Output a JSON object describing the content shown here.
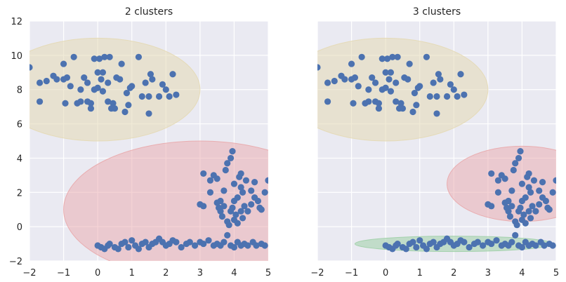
{
  "chart_data": [
    {
      "type": "scatter",
      "title": "2 clusters",
      "xlim": [
        -2,
        5
      ],
      "ylim": [
        -2,
        12
      ],
      "xticks": [
        "−2",
        "−1",
        "0",
        "1",
        "2",
        "3",
        "4",
        "5"
      ],
      "yticks": [
        "−2",
        "0",
        "2",
        "4",
        "6",
        "8",
        "10",
        "12"
      ],
      "grid": true,
      "point_color": "#4c72b0",
      "background_color": "#eaeaf2",
      "ellipses": [
        {
          "cx": 0.0,
          "cy": 8.0,
          "rx": 3.0,
          "ry": 3.0,
          "color": "#e4d9b4",
          "opacity": 0.55
        },
        {
          "cx": 3.0,
          "cy": 1.0,
          "rx": 4.0,
          "ry": 4.0,
          "color": "#e9a8ab",
          "opacity": 0.5
        }
      ]
    },
    {
      "type": "scatter",
      "title": "3 clusters",
      "xlim": [
        -2,
        5
      ],
      "ylim": [
        -2,
        12
      ],
      "xticks": [
        "−2",
        "−1",
        "0",
        "1",
        "2",
        "3",
        "4",
        "5"
      ],
      "yticks": [],
      "grid": true,
      "point_color": "#4c72b0",
      "background_color": "#eaeaf2",
      "ellipses": [
        {
          "cx": 0.0,
          "cy": 8.0,
          "rx": 3.0,
          "ry": 3.0,
          "color": "#e4d9b4",
          "opacity": 0.55
        },
        {
          "cx": 4.0,
          "cy": 2.5,
          "rx": 2.2,
          "ry": 2.2,
          "color": "#e9a8ab",
          "opacity": 0.5
        },
        {
          "cx": 2.0,
          "cy": -1.0,
          "rx": 2.9,
          "ry": 0.45,
          "color": "#9fcfa7",
          "opacity": 0.55
        }
      ]
    }
  ],
  "points": {
    "top": [
      [
        -2.0,
        9.3
      ],
      [
        -1.7,
        8.4
      ],
      [
        -1.7,
        7.3
      ],
      [
        -1.5,
        8.5
      ],
      [
        -1.3,
        8.8
      ],
      [
        -1.2,
        8.6
      ],
      [
        -1.0,
        8.6
      ],
      [
        -1.0,
        9.5
      ],
      [
        -0.95,
        7.2
      ],
      [
        -0.9,
        8.7
      ],
      [
        -0.8,
        8.2
      ],
      [
        -0.7,
        9.9
      ],
      [
        -0.6,
        7.2
      ],
      [
        -0.5,
        8.0
      ],
      [
        -0.5,
        7.3
      ],
      [
        -0.4,
        8.7
      ],
      [
        -0.3,
        8.4
      ],
      [
        -0.3,
        7.3
      ],
      [
        -0.2,
        7.2
      ],
      [
        -0.2,
        6.9
      ],
      [
        -0.1,
        8.0
      ],
      [
        -0.1,
        9.8
      ],
      [
        0.0,
        8.1
      ],
      [
        0.0,
        9.0
      ],
      [
        0.05,
        9.8
      ],
      [
        0.1,
        8.6
      ],
      [
        0.15,
        9.0
      ],
      [
        0.15,
        7.9
      ],
      [
        0.2,
        9.9
      ],
      [
        0.3,
        8.4
      ],
      [
        0.3,
        7.3
      ],
      [
        0.35,
        9.9
      ],
      [
        0.4,
        6.9
      ],
      [
        0.45,
        7.2
      ],
      [
        0.5,
        6.9
      ],
      [
        0.55,
        8.7
      ],
      [
        0.65,
        8.6
      ],
      [
        0.7,
        9.5
      ],
      [
        0.8,
        6.7
      ],
      [
        0.85,
        7.8
      ],
      [
        0.9,
        7.1
      ],
      [
        0.95,
        8.1
      ],
      [
        1.0,
        8.2
      ],
      [
        1.2,
        9.9
      ],
      [
        1.3,
        7.6
      ],
      [
        1.4,
        8.4
      ],
      [
        1.5,
        6.6
      ],
      [
        1.5,
        7.6
      ],
      [
        1.55,
        8.9
      ],
      [
        1.6,
        8.6
      ],
      [
        1.8,
        7.6
      ],
      [
        1.9,
        8.3
      ],
      [
        2.0,
        8.0
      ],
      [
        2.1,
        7.6
      ],
      [
        2.2,
        8.9
      ],
      [
        2.3,
        7.7
      ]
    ],
    "cross": [
      [
        3.1,
        3.1
      ],
      [
        3.3,
        2.0
      ],
      [
        3.3,
        2.7
      ],
      [
        3.4,
        3.0
      ],
      [
        3.5,
        2.8
      ],
      [
        3.6,
        1.5
      ],
      [
        3.7,
        2.1
      ],
      [
        3.75,
        3.3
      ],
      [
        3.8,
        3.7
      ],
      [
        3.9,
        4.0
      ],
      [
        3.95,
        4.4
      ],
      [
        4.0,
        1.5
      ],
      [
        4.0,
        2.5
      ],
      [
        4.1,
        1.7
      ],
      [
        4.15,
        2.9
      ],
      [
        4.2,
        3.1
      ],
      [
        4.2,
        2.3
      ],
      [
        4.25,
        2.0
      ],
      [
        4.3,
        1.2
      ],
      [
        4.35,
        2.7
      ],
      [
        4.5,
        2.1
      ],
      [
        4.6,
        1.7
      ],
      [
        4.6,
        2.6
      ],
      [
        4.7,
        1.5
      ],
      [
        4.8,
        1.0
      ],
      [
        4.9,
        2.0
      ],
      [
        5.0,
        2.7
      ],
      [
        3.0,
        1.3
      ],
      [
        3.1,
        1.2
      ],
      [
        3.5,
        1.4
      ],
      [
        3.55,
        1.1
      ],
      [
        3.6,
        0.9
      ],
      [
        3.65,
        0.6
      ],
      [
        3.7,
        1.2
      ],
      [
        3.8,
        0.3
      ],
      [
        3.85,
        0.1
      ],
      [
        3.9,
        0.9
      ],
      [
        3.95,
        1.1
      ],
      [
        4.0,
        0.4
      ],
      [
        4.05,
        0.7
      ],
      [
        4.1,
        0.2
      ],
      [
        4.2,
        0.9
      ],
      [
        4.25,
        0.5
      ],
      [
        4.4,
        0.9
      ],
      [
        4.5,
        1.3
      ],
      [
        4.75,
        1.1
      ]
    ],
    "line": [
      [
        0.0,
        -1.1
      ],
      [
        0.1,
        -1.2
      ],
      [
        0.2,
        -1.3
      ],
      [
        0.3,
        -1.1
      ],
      [
        0.35,
        -1.0
      ],
      [
        0.5,
        -1.2
      ],
      [
        0.6,
        -1.3
      ],
      [
        0.7,
        -1.0
      ],
      [
        0.8,
        -0.9
      ],
      [
        0.9,
        -1.2
      ],
      [
        1.0,
        -0.8
      ],
      [
        1.1,
        -1.1
      ],
      [
        1.2,
        -1.3
      ],
      [
        1.3,
        -1.0
      ],
      [
        1.4,
        -0.9
      ],
      [
        1.5,
        -1.2
      ],
      [
        1.6,
        -1.0
      ],
      [
        1.7,
        -0.9
      ],
      [
        1.8,
        -0.7
      ],
      [
        1.9,
        -0.9
      ],
      [
        2.0,
        -1.1
      ],
      [
        2.1,
        -1.0
      ],
      [
        2.2,
        -0.8
      ],
      [
        2.3,
        -0.9
      ],
      [
        2.45,
        -1.2
      ],
      [
        2.6,
        -1.0
      ],
      [
        2.7,
        -0.9
      ],
      [
        2.85,
        -1.1
      ],
      [
        3.0,
        -0.9
      ],
      [
        3.1,
        -1.0
      ],
      [
        3.25,
        -0.8
      ],
      [
        3.4,
        -1.1
      ],
      [
        3.5,
        -1.0
      ],
      [
        3.6,
        -1.1
      ],
      [
        3.7,
        -0.9
      ],
      [
        3.8,
        -0.5
      ],
      [
        3.9,
        -1.1
      ],
      [
        4.0,
        -1.2
      ],
      [
        4.1,
        -0.9
      ],
      [
        4.2,
        -1.1
      ],
      [
        4.3,
        -1.0
      ],
      [
        4.4,
        -1.1
      ],
      [
        4.55,
        -0.9
      ],
      [
        4.65,
        -1.1
      ],
      [
        4.8,
        -1.0
      ],
      [
        4.9,
        -1.1
      ]
    ]
  }
}
